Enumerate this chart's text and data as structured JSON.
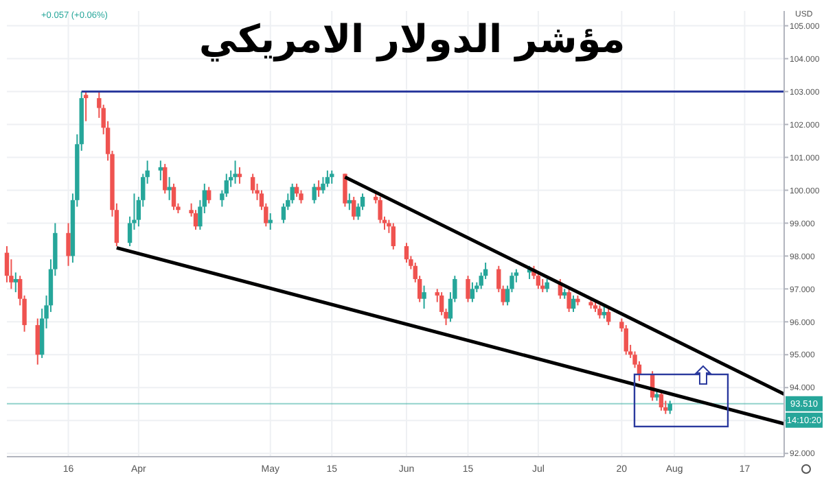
{
  "chart_data": {
    "type": "candlestick",
    "title": "مؤشر الدولار الامريكي",
    "x": [
      "--03-02",
      "--03-03",
      "--03-04",
      "--03-05",
      "--03-06",
      "--03-09",
      "--03-10",
      "--03-11",
      "--03-12",
      "--03-13",
      "--03-16",
      "--03-17",
      "--03-18",
      "--03-19",
      "--03-20",
      "--03-23",
      "--03-24",
      "--03-25",
      "--03-26",
      "--03-27",
      "--03-30",
      "--03-31",
      "--04-01",
      "--04-02",
      "--04-03",
      "--04-06",
      "--04-07",
      "--04-08",
      "--04-09",
      "--04-10",
      "--04-13",
      "--04-14",
      "--04-15",
      "--04-16",
      "--04-17",
      "--04-20",
      "--04-21",
      "--04-22",
      "--04-23",
      "--04-24",
      "--04-27",
      "--04-28",
      "--04-29",
      "--04-30",
      "--05-01",
      "--05-04",
      "--05-05",
      "--05-06",
      "--05-07",
      "--05-08",
      "--05-11",
      "--05-12",
      "--05-13",
      "--05-14",
      "--05-15",
      "--05-18",
      "--05-19",
      "--05-20",
      "--05-21",
      "--05-22",
      "--05-25",
      "--05-26",
      "--05-27",
      "--05-28",
      "--05-29",
      "--06-01",
      "--06-02",
      "--06-03",
      "--06-04",
      "--06-05",
      "--06-08",
      "--06-09",
      "--06-10",
      "--06-11",
      "--06-12",
      "--06-15",
      "--06-16",
      "--06-17",
      "--06-18",
      "--06-19",
      "--06-22",
      "--06-23",
      "--06-24",
      "--06-25",
      "--06-26",
      "--06-29",
      "--06-30",
      "--07-01",
      "--07-02",
      "--07-03",
      "--07-06",
      "--07-07",
      "--07-08",
      "--07-09",
      "--07-10",
      "--07-13",
      "--07-14",
      "--07-15",
      "--07-16",
      "--07-17",
      "--07-20",
      "--07-21",
      "--07-22",
      "--07-23",
      "--07-24",
      "--07-27",
      "--07-28",
      "--07-29",
      "--07-30",
      "--07-31"
    ],
    "ohlc": [
      [
        98.1,
        98.3,
        97.2,
        97.4
      ],
      [
        97.4,
        97.9,
        97.0,
        97.2
      ],
      [
        97.2,
        97.5,
        96.9,
        97.3
      ],
      [
        97.3,
        97.4,
        96.5,
        96.7
      ],
      [
        96.7,
        96.8,
        95.7,
        95.9
      ],
      [
        95.9,
        96.1,
        94.7,
        95.0
      ],
      [
        95.0,
        96.4,
        94.9,
        96.1
      ],
      [
        96.1,
        96.8,
        95.8,
        96.5
      ],
      [
        96.5,
        97.9,
        96.3,
        97.6
      ],
      [
        97.6,
        99.0,
        97.4,
        98.7
      ],
      [
        98.7,
        99.0,
        97.7,
        98.0
      ],
      [
        98.0,
        99.9,
        97.8,
        99.7
      ],
      [
        99.7,
        101.7,
        99.5,
        101.4
      ],
      [
        101.4,
        103.0,
        101.2,
        102.8
      ],
      [
        102.9,
        103.0,
        102.1,
        102.8
      ],
      [
        102.8,
        103.0,
        102.2,
        102.5
      ],
      [
        102.5,
        102.6,
        101.7,
        101.9
      ],
      [
        101.9,
        102.1,
        100.9,
        101.1
      ],
      [
        101.1,
        101.2,
        99.2,
        99.4
      ],
      [
        99.4,
        99.6,
        98.3,
        98.4
      ],
      [
        98.4,
        99.2,
        98.3,
        99.0
      ],
      [
        99.0,
        99.9,
        98.8,
        99.1
      ],
      [
        99.1,
        99.8,
        98.9,
        99.7
      ],
      [
        99.7,
        100.5,
        99.5,
        100.4
      ],
      [
        100.4,
        100.9,
        100.2,
        100.6
      ],
      [
        100.6,
        100.9,
        100.3,
        100.7
      ],
      [
        100.7,
        100.8,
        99.9,
        100.0
      ],
      [
        100.0,
        100.4,
        99.7,
        100.1
      ],
      [
        100.1,
        100.2,
        99.4,
        99.5
      ],
      [
        99.5,
        99.6,
        99.3,
        99.4
      ],
      [
        99.4,
        99.6,
        99.2,
        99.3
      ],
      [
        99.3,
        99.4,
        98.8,
        98.9
      ],
      [
        98.9,
        99.7,
        98.8,
        99.5
      ],
      [
        99.5,
        100.2,
        99.3,
        100.0
      ],
      [
        100.0,
        100.1,
        99.6,
        99.7
      ],
      [
        99.7,
        100.0,
        99.5,
        99.9
      ],
      [
        99.9,
        100.5,
        99.8,
        100.3
      ],
      [
        100.3,
        100.6,
        100.1,
        100.4
      ],
      [
        100.4,
        100.9,
        100.2,
        100.5
      ],
      [
        100.5,
        100.7,
        100.2,
        100.4
      ],
      [
        100.4,
        100.5,
        99.9,
        100.0
      ],
      [
        100.0,
        100.2,
        99.7,
        99.9
      ],
      [
        99.9,
        100.0,
        99.4,
        99.5
      ],
      [
        99.5,
        99.6,
        98.9,
        99.0
      ],
      [
        99.0,
        99.3,
        98.8,
        99.1
      ],
      [
        99.1,
        99.6,
        99.0,
        99.5
      ],
      [
        99.5,
        99.9,
        99.4,
        99.7
      ],
      [
        99.7,
        100.2,
        99.6,
        100.1
      ],
      [
        100.1,
        100.2,
        99.8,
        99.9
      ],
      [
        99.9,
        100.0,
        99.6,
        99.7
      ],
      [
        99.7,
        100.2,
        99.6,
        100.1
      ],
      [
        100.1,
        100.3,
        99.8,
        100.0
      ],
      [
        100.0,
        100.4,
        99.9,
        100.2
      ],
      [
        100.2,
        100.6,
        100.1,
        100.4
      ],
      [
        100.4,
        100.6,
        100.2,
        100.5
      ],
      [
        100.5,
        100.5,
        99.5,
        99.6
      ],
      [
        99.6,
        99.9,
        99.4,
        99.7
      ],
      [
        99.7,
        99.8,
        99.1,
        99.2
      ],
      [
        99.2,
        99.6,
        99.1,
        99.5
      ],
      [
        99.5,
        99.9,
        99.4,
        99.8
      ],
      [
        99.8,
        99.9,
        99.6,
        99.7
      ],
      [
        99.7,
        99.8,
        99.0,
        99.1
      ],
      [
        99.1,
        99.2,
        98.8,
        99.0
      ],
      [
        99.0,
        99.1,
        98.7,
        98.9
      ],
      [
        98.9,
        99.0,
        98.2,
        98.3
      ],
      [
        98.3,
        98.4,
        97.8,
        97.9
      ],
      [
        97.9,
        98.0,
        97.6,
        97.7
      ],
      [
        97.7,
        97.8,
        97.2,
        97.3
      ],
      [
        97.3,
        97.4,
        96.6,
        96.7
      ],
      [
        96.7,
        97.1,
        96.4,
        96.9
      ],
      [
        96.9,
        97.0,
        96.6,
        96.8
      ],
      [
        96.8,
        96.9,
        96.2,
        96.3
      ],
      [
        96.3,
        96.4,
        95.9,
        96.1
      ],
      [
        96.1,
        96.9,
        96.0,
        96.7
      ],
      [
        96.7,
        97.4,
        96.6,
        97.3
      ],
      [
        97.3,
        97.4,
        96.6,
        96.7
      ],
      [
        96.7,
        97.2,
        96.6,
        97.0
      ],
      [
        97.0,
        97.2,
        96.9,
        97.1
      ],
      [
        97.1,
        97.5,
        97.0,
        97.4
      ],
      [
        97.4,
        97.8,
        97.3,
        97.6
      ],
      [
        97.6,
        97.7,
        96.9,
        97.0
      ],
      [
        97.0,
        97.1,
        96.5,
        96.6
      ],
      [
        96.6,
        97.1,
        96.5,
        97.0
      ],
      [
        97.0,
        97.5,
        96.9,
        97.4
      ],
      [
        97.4,
        97.6,
        97.2,
        97.5
      ],
      [
        97.5,
        97.7,
        97.3,
        97.6
      ],
      [
        97.6,
        97.7,
        97.3,
        97.4
      ],
      [
        97.4,
        97.5,
        97.0,
        97.1
      ],
      [
        97.1,
        97.3,
        96.9,
        97.0
      ],
      [
        97.0,
        97.3,
        96.9,
        97.2
      ],
      [
        97.2,
        97.3,
        96.7,
        96.8
      ],
      [
        96.8,
        97.0,
        96.7,
        96.9
      ],
      [
        96.9,
        97.0,
        96.3,
        96.4
      ],
      [
        96.4,
        96.8,
        96.3,
        96.7
      ],
      [
        96.7,
        96.8,
        96.5,
        96.6
      ],
      [
        96.6,
        96.7,
        96.4,
        96.5
      ],
      [
        96.5,
        96.6,
        96.3,
        96.4
      ],
      [
        96.4,
        96.5,
        96.1,
        96.2
      ],
      [
        96.2,
        96.5,
        96.1,
        96.3
      ],
      [
        96.3,
        96.4,
        95.9,
        96.0
      ],
      [
        96.0,
        96.1,
        95.7,
        95.8
      ],
      [
        95.8,
        95.9,
        95.0,
        95.1
      ],
      [
        95.1,
        95.3,
        94.9,
        95.0
      ],
      [
        95.0,
        95.1,
        94.6,
        94.7
      ],
      [
        94.7,
        94.8,
        94.2,
        94.4
      ],
      [
        94.4,
        94.5,
        93.6,
        93.7
      ],
      [
        93.7,
        93.9,
        93.6,
        93.8
      ],
      [
        93.8,
        93.9,
        93.3,
        93.4
      ],
      [
        93.4,
        93.6,
        93.2,
        93.3
      ],
      [
        93.3,
        93.6,
        93.2,
        93.51
      ]
    ],
    "series": [
      {
        "type": "line",
        "color": "#2b3a9e",
        "x": [
          "--03-19",
          "--08-26"
        ],
        "values": [
          103,
          103
        ]
      },
      {
        "type": "line",
        "color": "#000000",
        "x": [
          "--05-18",
          "--08-26"
        ],
        "values": [
          100.4,
          93.8
        ]
      },
      {
        "type": "line",
        "color": "#000000",
        "x": [
          "--03-27",
          "--08-26"
        ],
        "values": [
          98.25,
          92.9
        ]
      }
    ],
    "xlim": [
      "--03-02",
      "--08-26"
    ],
    "xticks": [
      {
        "value": "--03-16",
        "label": "16"
      },
      {
        "value": "--04-01",
        "label": "Apr"
      },
      {
        "value": "--05-01",
        "label": "May"
      },
      {
        "value": "--05-15",
        "label": "15"
      },
      {
        "value": "--06-01",
        "label": "Jun"
      },
      {
        "value": "--06-15",
        "label": "15"
      },
      {
        "value": "--07-01",
        "label": "Jul"
      },
      {
        "value": "--07-20",
        "label": "20"
      },
      {
        "value": "--08-01",
        "label": "Aug"
      },
      {
        "value": "--08-17",
        "label": "17"
      }
    ],
    "ylim": [
      91.9,
      105.45
    ],
    "yticks": [
      {
        "value": 92,
        "label": "92.000"
      },
      {
        "value": 93,
        "label": null
      },
      {
        "value": 94,
        "label": "94.000"
      },
      {
        "value": 95,
        "label": "95.000"
      },
      {
        "value": 96,
        "label": "96.000"
      },
      {
        "value": 97,
        "label": "97.000"
      },
      {
        "value": 98,
        "label": "98.000"
      },
      {
        "value": 99,
        "label": "99.000"
      },
      {
        "value": 100,
        "label": "100.000"
      },
      {
        "value": 101,
        "label": "101.000"
      },
      {
        "value": 102,
        "label": "102.000"
      },
      {
        "value": 103,
        "label": "103.000"
      },
      {
        "value": 104,
        "label": "104.000"
      },
      {
        "value": 105,
        "label": "105.000"
      }
    ],
    "ref_lines": [
      {
        "axis": "y",
        "value": 93.51,
        "label": "93.510",
        "color": "#26a69a"
      }
    ],
    "annotations": [
      "+0.057 (+0.06%)",
      "USD",
      "14:10:20"
    ],
    "grid": true
  }
}
